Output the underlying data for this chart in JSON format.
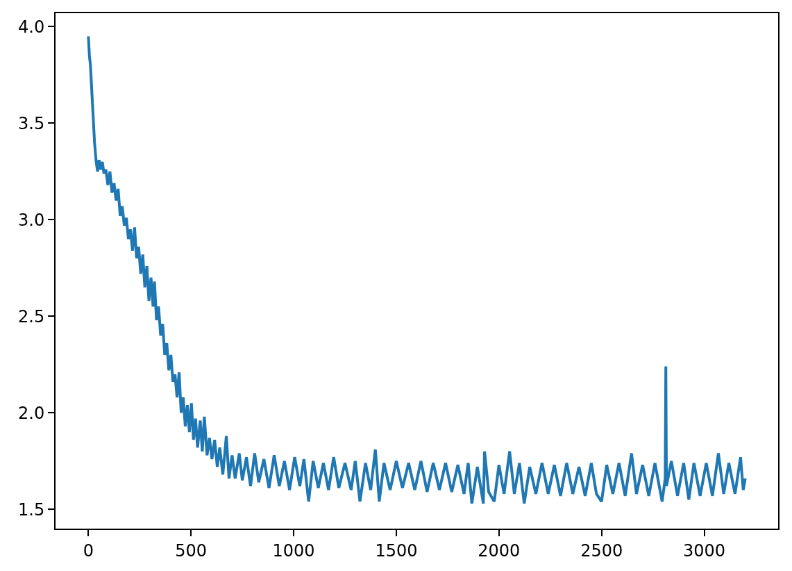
{
  "chart_data": {
    "type": "line",
    "x": [
      0,
      5,
      10,
      20,
      30,
      38,
      45,
      52,
      60,
      68,
      76,
      85,
      95,
      105,
      115,
      125,
      135,
      145,
      155,
      165,
      175,
      185,
      195,
      205,
      215,
      225,
      235,
      245,
      255,
      265,
      275,
      285,
      295,
      305,
      315,
      322,
      332,
      342,
      352,
      362,
      372,
      382,
      392,
      402,
      412,
      422,
      432,
      442,
      452,
      462,
      472,
      482,
      492,
      502,
      512,
      522,
      532,
      545,
      555,
      565,
      578,
      590,
      602,
      615,
      628,
      640,
      655,
      672,
      685,
      700,
      715,
      735,
      750,
      770,
      790,
      810,
      830,
      855,
      880,
      905,
      930,
      955,
      980,
      1005,
      1030,
      1050,
      1073,
      1095,
      1120,
      1145,
      1170,
      1195,
      1220,
      1250,
      1280,
      1300,
      1323,
      1350,
      1375,
      1398,
      1417,
      1440,
      1470,
      1500,
      1530,
      1560,
      1590,
      1620,
      1650,
      1680,
      1710,
      1740,
      1770,
      1800,
      1830,
      1850,
      1868,
      1895,
      1924,
      1930,
      1950,
      1977,
      2000,
      2025,
      2052,
      2075,
      2100,
      2123,
      2150,
      2180,
      2210,
      2240,
      2270,
      2300,
      2330,
      2360,
      2390,
      2420,
      2450,
      2475,
      2500,
      2525,
      2555,
      2585,
      2615,
      2646,
      2670,
      2700,
      2730,
      2760,
      2795,
      2810,
      2813,
      2816,
      2840,
      2870,
      2900,
      2925,
      2950,
      2980,
      3010,
      3040,
      3069,
      3095,
      3120,
      3150,
      3177,
      3190,
      3200
    ],
    "series": [
      {
        "color": "#1f77b4",
        "values": [
          3.95,
          3.85,
          3.8,
          3.6,
          3.4,
          3.3,
          3.25,
          3.31,
          3.26,
          3.3,
          3.24,
          3.26,
          3.18,
          3.25,
          3.14,
          3.19,
          3.1,
          3.16,
          3.02,
          3.07,
          2.97,
          3.01,
          2.9,
          2.95,
          2.84,
          2.96,
          2.8,
          2.86,
          2.72,
          2.82,
          2.65,
          2.76,
          2.58,
          2.7,
          2.55,
          2.68,
          2.48,
          2.55,
          2.4,
          2.46,
          2.3,
          2.36,
          2.22,
          2.3,
          2.16,
          2.2,
          2.08,
          2.21,
          2.0,
          2.08,
          1.93,
          2.04,
          1.9,
          2.05,
          1.86,
          1.97,
          1.82,
          1.96,
          1.8,
          1.98,
          1.78,
          1.87,
          1.76,
          1.86,
          1.72,
          1.82,
          1.68,
          1.88,
          1.66,
          1.78,
          1.66,
          1.79,
          1.65,
          1.77,
          1.62,
          1.79,
          1.64,
          1.76,
          1.61,
          1.78,
          1.62,
          1.75,
          1.6,
          1.77,
          1.62,
          1.76,
          1.54,
          1.75,
          1.61,
          1.74,
          1.6,
          1.77,
          1.61,
          1.74,
          1.6,
          1.75,
          1.54,
          1.74,
          1.6,
          1.81,
          1.54,
          1.74,
          1.6,
          1.75,
          1.61,
          1.74,
          1.6,
          1.75,
          1.59,
          1.74,
          1.6,
          1.74,
          1.59,
          1.73,
          1.58,
          1.74,
          1.53,
          1.72,
          1.53,
          1.8,
          1.59,
          1.54,
          1.73,
          1.58,
          1.8,
          1.58,
          1.74,
          1.53,
          1.72,
          1.58,
          1.74,
          1.58,
          1.73,
          1.57,
          1.74,
          1.58,
          1.72,
          1.57,
          1.74,
          1.58,
          1.54,
          1.73,
          1.58,
          1.74,
          1.57,
          1.79,
          1.58,
          1.73,
          1.57,
          1.74,
          1.54,
          1.66,
          2.24,
          1.62,
          1.75,
          1.57,
          1.74,
          1.55,
          1.74,
          1.57,
          1.74,
          1.57,
          1.79,
          1.58,
          1.74,
          1.58,
          1.77,
          1.6,
          1.66
        ]
      }
    ],
    "xlim": [
      -160,
      3360
    ],
    "xticks": [
      0,
      500,
      1000,
      1500,
      2000,
      2500,
      3000
    ],
    "ylim": [
      1.4,
      4.07
    ],
    "yticks": [
      1.5,
      {
        "value": 2,
        "label": "2.0"
      },
      2.5,
      {
        "value": 3,
        "label": "3.0"
      },
      3.5,
      {
        "value": 4,
        "label": "4.0"
      }
    ],
    "line_style": "solid"
  }
}
